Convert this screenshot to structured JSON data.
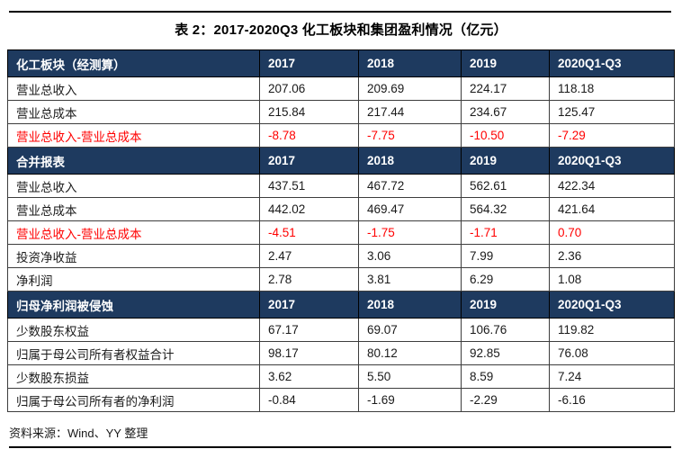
{
  "title": "表 2：2017-2020Q3 化工板块和集团盈利情况（亿元）",
  "source": "资料来源：Wind、YY 整理",
  "colors": {
    "header_bg": "#1E3A5F",
    "highlight_red": "#FF0000",
    "rule_black": "#000000"
  },
  "table": {
    "columns": [
      "2017",
      "2018",
      "2019",
      "2020Q1-Q3"
    ],
    "sections": [
      {
        "header": "化工板块（经测算）",
        "rows": [
          {
            "label": "营业总收入",
            "values": [
              "207.06",
              "209.69",
              "224.17",
              "118.18"
            ],
            "highlight": false
          },
          {
            "label": "营业总成本",
            "values": [
              "215.84",
              "217.44",
              "234.67",
              "125.47"
            ],
            "highlight": false
          },
          {
            "label": "营业总收入-营业总成本",
            "values": [
              "-8.78",
              "-7.75",
              "-10.50",
              "-7.29"
            ],
            "highlight": true
          }
        ]
      },
      {
        "header": "合并报表",
        "rows": [
          {
            "label": "营业总收入",
            "values": [
              "437.51",
              "467.72",
              "562.61",
              "422.34"
            ],
            "highlight": false
          },
          {
            "label": "营业总成本",
            "values": [
              "442.02",
              "469.47",
              "564.32",
              "421.64"
            ],
            "highlight": false
          },
          {
            "label": "营业总收入-营业总成本",
            "values": [
              "-4.51",
              "-1.75",
              "-1.71",
              "0.70"
            ],
            "highlight": true
          },
          {
            "label": "投资净收益",
            "values": [
              "2.47",
              "3.06",
              "7.99",
              "2.36"
            ],
            "highlight": false
          },
          {
            "label": "净利润",
            "values": [
              "2.78",
              "3.81",
              "6.29",
              "1.08"
            ],
            "highlight": false
          }
        ]
      },
      {
        "header": "归母净利润被侵蚀",
        "rows": [
          {
            "label": "少数股东权益",
            "values": [
              "67.17",
              "69.07",
              "106.76",
              "119.82"
            ],
            "highlight": false
          },
          {
            "label": "归属于母公司所有者权益合计",
            "values": [
              "98.17",
              "80.12",
              "92.85",
              "76.08"
            ],
            "highlight": false
          },
          {
            "label": "少数股东损益",
            "values": [
              "3.62",
              "5.50",
              "8.59",
              "7.24"
            ],
            "highlight": false
          },
          {
            "label": "归属于母公司所有者的净利润",
            "values": [
              "-0.84",
              "-1.69",
              "-2.29",
              "-6.16"
            ],
            "highlight": false
          }
        ]
      }
    ]
  },
  "chart_data": {
    "type": "table",
    "title": "表 2：2017-2020Q3 化工板块和集团盈利情况（亿元）",
    "categories": [
      "2017",
      "2018",
      "2019",
      "2020Q1-Q3"
    ],
    "series": [
      {
        "name": "化工板块 营业总收入",
        "values": [
          207.06,
          209.69,
          224.17,
          118.18
        ]
      },
      {
        "name": "化工板块 营业总成本",
        "values": [
          215.84,
          217.44,
          234.67,
          125.47
        ]
      },
      {
        "name": "化工板块 营业总收入-营业总成本",
        "values": [
          -8.78,
          -7.75,
          -10.5,
          -7.29
        ]
      },
      {
        "name": "合并报表 营业总收入",
        "values": [
          437.51,
          467.72,
          562.61,
          422.34
        ]
      },
      {
        "name": "合并报表 营业总成本",
        "values": [
          442.02,
          469.47,
          564.32,
          421.64
        ]
      },
      {
        "name": "合并报表 营业总收入-营业总成本",
        "values": [
          -4.51,
          -1.75,
          -1.71,
          0.7
        ]
      },
      {
        "name": "投资净收益",
        "values": [
          2.47,
          3.06,
          7.99,
          2.36
        ]
      },
      {
        "name": "净利润",
        "values": [
          2.78,
          3.81,
          6.29,
          1.08
        ]
      },
      {
        "name": "少数股东权益",
        "values": [
          67.17,
          69.07,
          106.76,
          119.82
        ]
      },
      {
        "name": "归属于母公司所有者权益合计",
        "values": [
          98.17,
          80.12,
          92.85,
          76.08
        ]
      },
      {
        "name": "少数股东损益",
        "values": [
          3.62,
          5.5,
          8.59,
          7.24
        ]
      },
      {
        "name": "归属于母公司所有者的净利润",
        "values": [
          -0.84,
          -1.69,
          -2.29,
          -6.16
        ]
      }
    ]
  }
}
